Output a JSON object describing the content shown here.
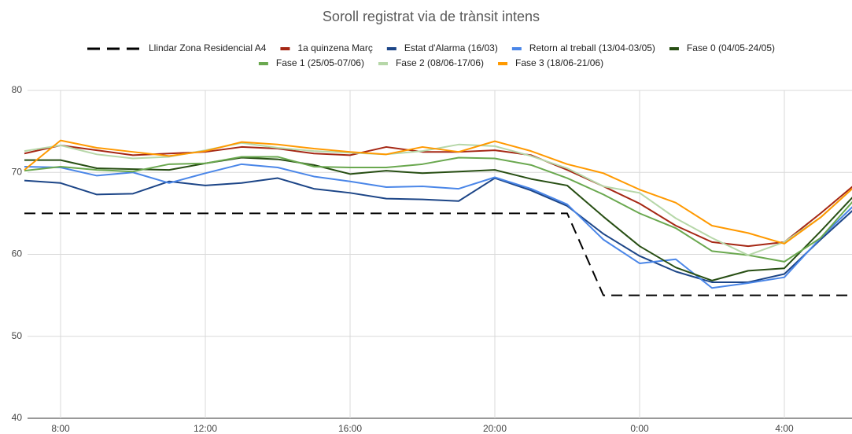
{
  "chart_data": {
    "type": "line",
    "title": "Soroll registrat via de trànsit intens",
    "categories": [
      null,
      "8:00",
      null,
      null,
      null,
      "12:00",
      null,
      null,
      null,
      "16:00",
      null,
      null,
      null,
      "20:00",
      null,
      null,
      null,
      "0:00",
      null,
      null,
      null,
      "4:00",
      null,
      null
    ],
    "ylim": [
      40,
      80
    ],
    "yticks": [
      40,
      50,
      60,
      70,
      80
    ],
    "grid": true,
    "legend": "top",
    "series": [
      {
        "name": "Llindar Zona Residencial A4",
        "color": "#000000",
        "dashed": true,
        "values": [
          65,
          65,
          65,
          65,
          65,
          65,
          65,
          65,
          65,
          65,
          65,
          65,
          65,
          65,
          65,
          65,
          55,
          55,
          55,
          55,
          55,
          55,
          55,
          55
        ]
      },
      {
        "name": "1a quinzena Març",
        "color": "#a52714",
        "values": [
          72.3,
          73.3,
          72.7,
          72.1,
          72.3,
          72.5,
          73.1,
          72.9,
          72.3,
          72.1,
          73.1,
          72.5,
          72.5,
          72.7,
          72.1,
          70.3,
          68.3,
          66.2,
          63.5,
          61.5,
          61.0,
          61.5,
          65.0,
          68.7
        ]
      },
      {
        "name": "Estat d'Alarma (16/03)",
        "color": "#1c4587",
        "values": [
          69.0,
          68.7,
          67.3,
          67.4,
          68.9,
          68.4,
          68.7,
          69.3,
          68.0,
          67.5,
          66.8,
          66.7,
          66.5,
          69.3,
          67.8,
          65.9,
          62.5,
          59.8,
          57.9,
          56.6,
          56.6,
          57.6,
          61.8,
          65.8
        ]
      },
      {
        "name": "Retorn al treball (13/04-03/05)",
        "color": "#4a86e8",
        "values": [
          70.7,
          70.6,
          69.6,
          70.0,
          68.7,
          69.9,
          71.0,
          70.6,
          69.5,
          68.9,
          68.2,
          68.3,
          68.0,
          69.4,
          68.0,
          66.1,
          61.8,
          58.9,
          59.4,
          55.9,
          56.5,
          57.2,
          62.0,
          66.3
        ]
      },
      {
        "name": "Fase 0 (04/05-24/05)",
        "color": "#274e13",
        "values": [
          71.5,
          71.5,
          70.5,
          70.4,
          70.3,
          71.1,
          71.8,
          71.6,
          70.9,
          69.8,
          70.2,
          69.9,
          70.1,
          70.3,
          69.2,
          68.4,
          64.6,
          61.0,
          58.4,
          56.8,
          58.0,
          58.3,
          62.8,
          67.5
        ]
      },
      {
        "name": "Fase 1 (25/05-07/06)",
        "color": "#6aa84f",
        "values": [
          70.2,
          70.7,
          70.3,
          70.1,
          71.0,
          71.1,
          71.9,
          71.9,
          70.7,
          70.6,
          70.6,
          71.0,
          71.8,
          71.7,
          70.9,
          69.3,
          67.3,
          65.0,
          63.2,
          60.4,
          59.9,
          59.1,
          62.0,
          67.0
        ]
      },
      {
        "name": "Fase 2 (08/06-17/06)",
        "color": "#b6d7a8",
        "values": [
          72.6,
          73.3,
          72.2,
          71.7,
          71.9,
          72.7,
          73.6,
          73.0,
          72.6,
          72.4,
          72.2,
          72.6,
          73.4,
          73.2,
          72.0,
          70.5,
          68.3,
          67.5,
          64.4,
          62.0,
          59.9,
          61.5,
          64.5,
          68.5
        ]
      },
      {
        "name": "Fase 3 (18/06-21/06)",
        "color": "#ff9900",
        "values": [
          70.3,
          73.9,
          73.0,
          72.5,
          72.0,
          72.6,
          73.7,
          73.4,
          72.9,
          72.5,
          72.2,
          73.1,
          72.5,
          73.8,
          72.6,
          71.0,
          69.9,
          67.9,
          66.3,
          63.5,
          62.6,
          61.3,
          64.5,
          68.5
        ]
      }
    ]
  }
}
